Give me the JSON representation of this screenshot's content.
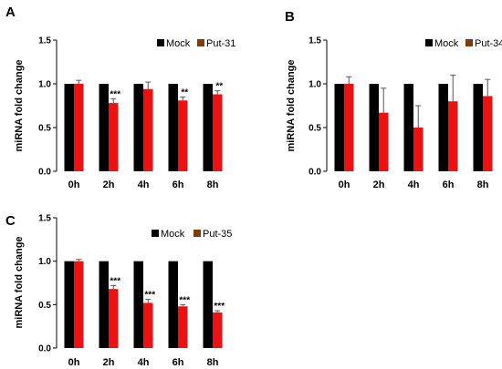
{
  "colors": {
    "mock": "#000000",
    "treatment": "#ee1111",
    "treatment_legend": "#7a3c10",
    "errorbar": "#555555"
  },
  "chart_data": [
    {
      "type": "bar",
      "panel": "A",
      "ylabel": "miRNA fold change",
      "ylim": [
        0,
        1.5
      ],
      "yticks": [
        "0.0",
        "0.5",
        "1.0",
        "1.5"
      ],
      "categories": [
        "0h",
        "2h",
        "4h",
        "6h",
        "8h"
      ],
      "legend_position": "top-right",
      "series": [
        {
          "name": "Mock",
          "values": [
            1.0,
            1.0,
            1.0,
            1.0,
            1.0
          ],
          "errors": [
            0,
            0,
            0,
            0,
            0
          ]
        },
        {
          "name": "Put-31",
          "values": [
            1.0,
            0.78,
            0.94,
            0.81,
            0.88
          ],
          "errors": [
            0.04,
            0.05,
            0.08,
            0.04,
            0.04
          ]
        }
      ],
      "significance": [
        "",
        "***",
        "",
        "**",
        "**"
      ]
    },
    {
      "type": "bar",
      "panel": "B",
      "ylabel": "miRNA fold change",
      "ylim": [
        0,
        1.5
      ],
      "yticks": [
        "0.0",
        "0.5",
        "1.0",
        "1.5"
      ],
      "categories": [
        "0h",
        "2h",
        "4h",
        "6h",
        "8h"
      ],
      "legend_position": "top-right",
      "series": [
        {
          "name": "Mock",
          "values": [
            1.0,
            1.0,
            1.0,
            1.0,
            1.0
          ],
          "errors": [
            0,
            0,
            0,
            0,
            0
          ]
        },
        {
          "name": "Put-34",
          "values": [
            1.0,
            0.67,
            0.5,
            0.8,
            0.86
          ],
          "errors": [
            0.08,
            0.28,
            0.25,
            0.3,
            0.19
          ]
        }
      ],
      "significance": [
        "",
        "",
        "",
        "",
        ""
      ]
    },
    {
      "type": "bar",
      "panel": "C",
      "ylabel": "miRNA fold change",
      "ylim": [
        0,
        1.5
      ],
      "yticks": [
        "0.0",
        "0.5",
        "1.0",
        "1.5"
      ],
      "categories": [
        "0h",
        "2h",
        "4h",
        "6h",
        "8h"
      ],
      "legend_position": "top-right",
      "series": [
        {
          "name": "Mock",
          "values": [
            1.0,
            1.0,
            1.0,
            1.0,
            1.0
          ],
          "errors": [
            0,
            0,
            0,
            0,
            0
          ]
        },
        {
          "name": "Put-35",
          "values": [
            1.0,
            0.68,
            0.52,
            0.48,
            0.41
          ],
          "errors": [
            0.02,
            0.04,
            0.04,
            0.02,
            0.02
          ]
        }
      ],
      "significance": [
        "",
        "***",
        "***",
        "***",
        "***"
      ]
    }
  ]
}
